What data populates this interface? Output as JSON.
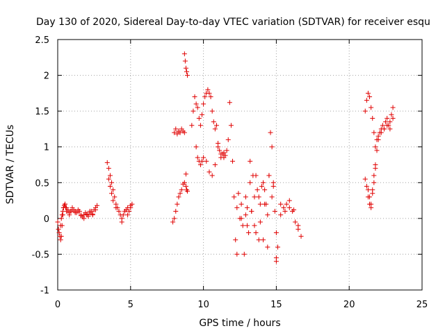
{
  "chart_data": {
    "type": "scatter",
    "title": "Day 130 of 2020, Sidereal Day-to-day VTEC variation (SDTVAR) for receiver esqu",
    "xlabel": "GPS time / hours",
    "ylabel": "SDTVAR / TECUs",
    "xlim": [
      0,
      25
    ],
    "ylim": [
      -1,
      2.5
    ],
    "xticks": [
      0,
      5,
      10,
      15,
      20,
      25
    ],
    "yticks": [
      -1,
      -0.5,
      0,
      0.5,
      1,
      1.5,
      2,
      2.5
    ],
    "xtick_labels": [
      "0",
      "5",
      "10",
      "15",
      "20",
      "25"
    ],
    "ytick_labels": [
      "-1",
      "-0.5",
      "0",
      "0.5",
      "1",
      "1.5",
      "2",
      "2.5"
    ],
    "grid": true,
    "marker": "+",
    "color": "#e00000",
    "series": [
      {
        "name": "SDTVAR",
        "x": [
          0.0,
          0.1,
          0.2,
          0.25,
          0.3,
          0.35,
          0.4,
          0.5,
          0.55,
          0.6,
          0.7,
          0.8,
          0.9,
          1.0,
          1.1,
          1.2,
          1.3,
          1.4,
          1.5,
          1.6,
          1.7,
          1.8,
          1.9,
          2.0,
          2.1,
          2.2,
          2.3,
          2.4,
          2.5,
          2.6,
          2.7,
          0.05,
          0.15,
          0.2,
          0.25,
          0.3,
          0.35,
          0.4,
          0.45,
          0.5,
          0.6,
          0.7,
          0.8,
          0.9,
          1.0,
          1.2,
          1.4,
          1.6,
          1.8,
          2.0,
          2.2,
          2.4,
          2.6,
          3.4,
          3.5,
          3.6,
          3.7,
          3.8,
          3.9,
          4.0,
          4.1,
          4.2,
          4.3,
          4.4,
          4.5,
          4.6,
          4.7,
          4.8,
          4.9,
          5.0,
          5.1,
          3.5,
          3.6,
          3.7,
          3.8,
          4.0,
          4.2,
          4.4,
          4.6,
          4.8,
          5.0,
          7.9,
          8.0,
          8.1,
          8.2,
          8.3,
          8.4,
          8.5,
          8.6,
          8.7,
          8.8,
          8.85,
          8.9,
          8.0,
          8.1,
          8.2,
          8.3,
          8.4,
          8.5,
          8.6,
          8.7,
          8.7,
          8.75,
          8.8,
          8.85,
          8.9,
          8.8,
          9.2,
          9.3,
          9.4,
          9.5,
          9.6,
          9.7,
          9.8,
          9.9,
          10.0,
          10.1,
          10.2,
          10.3,
          10.4,
          10.5,
          10.6,
          10.7,
          10.8,
          10.9,
          11.0,
          11.1,
          11.2,
          11.3,
          11.4,
          11.5,
          11.6,
          11.7,
          11.8,
          11.9,
          12.0,
          9.5,
          9.6,
          9.7,
          9.8,
          9.9,
          10.0,
          10.2,
          10.4,
          10.6,
          10.8,
          11.0,
          11.2,
          11.4,
          12.1,
          12.3,
          12.5,
          12.7,
          12.9,
          13.1,
          13.3,
          13.5,
          13.7,
          13.9,
          14.1,
          14.3,
          14.5,
          14.7,
          14.9,
          15.1,
          15.3,
          15.5,
          15.7,
          15.9,
          16.1,
          16.3,
          16.5,
          16.7,
          12.2,
          12.4,
          12.6,
          12.8,
          13.0,
          13.2,
          13.4,
          13.6,
          13.8,
          14.0,
          14.2,
          14.4,
          14.6,
          14.8,
          15.0,
          12.3,
          12.6,
          12.9,
          13.2,
          13.5,
          13.8,
          14.1,
          14.4,
          14.7,
          15.0,
          15.3,
          15.6,
          15.9,
          16.2,
          16.5,
          13.0,
          13.3,
          13.6,
          13.9,
          14.2,
          14.5,
          14.8,
          15.0,
          21.1,
          21.2,
          21.3,
          21.4,
          21.5,
          21.6,
          21.7,
          21.8,
          21.9,
          22.0,
          22.1,
          22.2,
          22.3,
          22.4,
          22.5,
          22.6,
          22.7,
          22.8,
          22.9,
          23.0,
          21.1,
          21.2,
          21.3,
          21.4,
          21.5,
          21.6,
          21.7,
          21.8,
          21.9,
          22.0,
          22.2,
          22.4,
          22.6,
          22.8,
          23.0,
          21.3,
          21.4,
          21.5,
          21.6,
          21.7,
          21.8
        ],
        "y": [
          -0.05,
          -0.2,
          -0.3,
          -0.25,
          -0.1,
          0.05,
          0.15,
          0.2,
          0.15,
          0.1,
          0.12,
          0.08,
          0.1,
          0.15,
          0.12,
          0.1,
          0.08,
          0.12,
          0.1,
          0.05,
          0.02,
          0.05,
          0.08,
          0.06,
          0.03,
          0.08,
          0.1,
          0.05,
          0.12,
          0.15,
          0.18,
          -0.15,
          -0.25,
          -0.1,
          0.0,
          0.05,
          0.1,
          0.15,
          0.18,
          0.2,
          0.15,
          0.1,
          0.05,
          0.1,
          0.12,
          0.08,
          0.1,
          0.04,
          0.0,
          0.05,
          0.1,
          0.06,
          0.12,
          0.78,
          0.7,
          0.6,
          0.5,
          0.4,
          0.3,
          0.2,
          0.15,
          0.1,
          0.05,
          0.0,
          0.05,
          0.1,
          0.12,
          0.15,
          0.1,
          0.18,
          0.2,
          0.55,
          0.45,
          0.35,
          0.25,
          0.15,
          0.1,
          -0.05,
          0.1,
          0.05,
          0.15,
          -0.05,
          0.0,
          0.1,
          0.2,
          0.3,
          0.35,
          0.4,
          0.48,
          0.5,
          0.45,
          0.4,
          0.38,
          1.2,
          1.25,
          1.18,
          1.22,
          1.2,
          1.25,
          1.22,
          1.2,
          2.3,
          2.2,
          2.1,
          2.05,
          2.0,
          0.62,
          1.3,
          1.5,
          1.7,
          1.6,
          1.55,
          1.4,
          1.3,
          1.45,
          1.6,
          1.7,
          1.75,
          1.8,
          1.75,
          1.7,
          1.5,
          1.35,
          1.25,
          1.3,
          1.05,
          0.95,
          0.85,
          0.9,
          0.92,
          0.88,
          0.95,
          1.1,
          1.62,
          1.3,
          0.8,
          1.0,
          0.85,
          0.8,
          0.75,
          0.8,
          0.85,
          0.8,
          0.65,
          0.6,
          0.75,
          1.0,
          0.9,
          0.85,
          0.3,
          0.15,
          0.0,
          -0.1,
          0.05,
          -0.2,
          0.1,
          -0.1,
          0.4,
          -0.05,
          -0.3,
          0.2,
          0.6,
          0.3,
          0.1,
          -0.4,
          0.05,
          0.15,
          0.2,
          0.25,
          0.1,
          -0.05,
          -0.15,
          -0.25,
          -0.3,
          0.35,
          0.2,
          -0.5,
          0.15,
          0.5,
          0.6,
          -0.2,
          0.3,
          0.45,
          0.2,
          0.05,
          1.2,
          0.5,
          -0.55,
          -0.5,
          0.0,
          0.3,
          0.8,
          0.3,
          -0.3,
          0.5,
          -0.4,
          1.0,
          -0.2,
          0.2,
          0.1,
          0.15,
          0.12,
          -0.1,
          -0.1,
          0.1,
          0.6,
          0.2,
          0.4,
          0.6,
          0.45,
          -0.6,
          1.5,
          1.65,
          1.75,
          1.7,
          1.55,
          1.4,
          1.2,
          1.0,
          1.1,
          1.15,
          1.2,
          1.25,
          1.3,
          1.25,
          1.35,
          1.4,
          1.3,
          1.25,
          1.45,
          1.55,
          0.55,
          0.45,
          0.4,
          0.3,
          0.2,
          0.35,
          0.5,
          0.7,
          0.95,
          1.1,
          1.2,
          1.25,
          1.3,
          1.35,
          1.4,
          0.3,
          0.2,
          0.15,
          0.4,
          0.6,
          0.75
        ]
      }
    ]
  }
}
